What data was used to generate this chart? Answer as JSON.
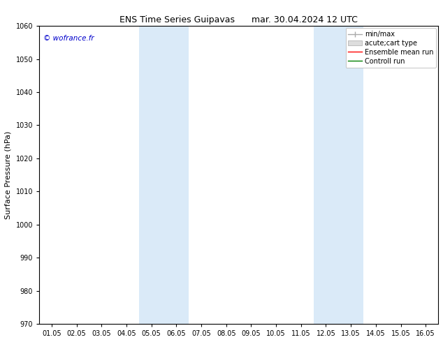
{
  "title_left": "ENS Time Series Guipavas",
  "title_right": "mar. 30.04.2024 12 UTC",
  "ylabel": "Surface Pressure (hPa)",
  "ylim": [
    970,
    1060
  ],
  "yticks": [
    970,
    980,
    990,
    1000,
    1010,
    1020,
    1030,
    1040,
    1050,
    1060
  ],
  "xtick_labels": [
    "01.05",
    "02.05",
    "03.05",
    "04.05",
    "05.05",
    "06.05",
    "07.05",
    "08.05",
    "09.05",
    "10.05",
    "11.05",
    "12.05",
    "13.05",
    "14.05",
    "15.05",
    "16.05"
  ],
  "xtick_positions": [
    0,
    1,
    2,
    3,
    4,
    5,
    6,
    7,
    8,
    9,
    10,
    11,
    12,
    13,
    14,
    15
  ],
  "shaded_regions": [
    {
      "xmin": 3.5,
      "xmax": 5.5,
      "color": "#daeaf8"
    },
    {
      "xmin": 10.5,
      "xmax": 12.5,
      "color": "#daeaf8"
    }
  ],
  "watermark_text": "© wofrance.fr",
  "watermark_color": "#0000cc",
  "background_color": "#ffffff",
  "title_fontsize": 9,
  "tick_fontsize": 7,
  "ylabel_fontsize": 8,
  "legend_fontsize": 7
}
